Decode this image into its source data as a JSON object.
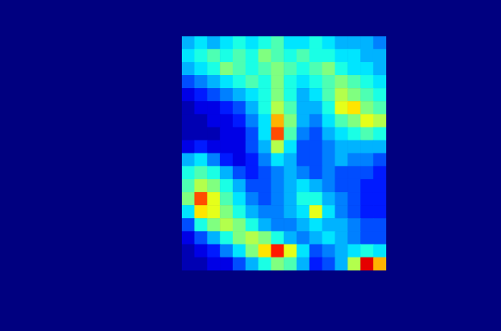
{
  "chart_data": {
    "type": "heatmap",
    "tick_labels": false,
    "xlim": [
      0,
      16
    ],
    "ylim": [
      0,
      18
    ],
    "color_range": [
      0,
      1
    ],
    "cells": [
      [
        0.3,
        0.35,
        0.3,
        0.35,
        0.4,
        0.35,
        0.4,
        0.45,
        0.35,
        0.35,
        0.4,
        0.35,
        0.3,
        0.3,
        0.3,
        0.25
      ],
      [
        0.35,
        0.4,
        0.45,
        0.4,
        0.45,
        0.4,
        0.5,
        0.45,
        0.4,
        0.45,
        0.4,
        0.4,
        0.35,
        0.35,
        0.3,
        0.3
      ],
      [
        0.3,
        0.35,
        0.4,
        0.5,
        0.45,
        0.4,
        0.45,
        0.5,
        0.45,
        0.4,
        0.45,
        0.5,
        0.4,
        0.35,
        0.35,
        0.3
      ],
      [
        0.2,
        0.25,
        0.3,
        0.35,
        0.4,
        0.45,
        0.4,
        0.5,
        0.4,
        0.35,
        0.4,
        0.45,
        0.5,
        0.45,
        0.4,
        0.35
      ],
      [
        0.1,
        0.15,
        0.2,
        0.25,
        0.3,
        0.35,
        0.4,
        0.5,
        0.4,
        0.3,
        0.35,
        0.45,
        0.55,
        0.5,
        0.45,
        0.4
      ],
      [
        0.05,
        0.1,
        0.1,
        0.15,
        0.2,
        0.3,
        0.4,
        0.55,
        0.45,
        0.3,
        0.3,
        0.4,
        0.6,
        0.65,
        0.5,
        0.45
      ],
      [
        0.05,
        0.05,
        0.1,
        0.1,
        0.15,
        0.25,
        0.35,
        0.7,
        0.5,
        0.3,
        0.25,
        0.35,
        0.45,
        0.5,
        0.6,
        0.55
      ],
      [
        0.05,
        0.05,
        0.05,
        0.1,
        0.1,
        0.2,
        0.35,
        0.8,
        0.45,
        0.25,
        0.2,
        0.3,
        0.35,
        0.4,
        0.45,
        0.4
      ],
      [
        0.1,
        0.15,
        0.1,
        0.1,
        0.1,
        0.2,
        0.3,
        0.55,
        0.35,
        0.2,
        0.2,
        0.25,
        0.3,
        0.3,
        0.3,
        0.3
      ],
      [
        0.3,
        0.35,
        0.25,
        0.15,
        0.1,
        0.15,
        0.25,
        0.35,
        0.3,
        0.2,
        0.2,
        0.25,
        0.3,
        0.25,
        0.25,
        0.2
      ],
      [
        0.4,
        0.45,
        0.4,
        0.3,
        0.2,
        0.15,
        0.2,
        0.25,
        0.3,
        0.25,
        0.2,
        0.25,
        0.2,
        0.2,
        0.2,
        0.15
      ],
      [
        0.45,
        0.55,
        0.5,
        0.4,
        0.3,
        0.2,
        0.2,
        0.25,
        0.3,
        0.35,
        0.3,
        0.25,
        0.2,
        0.2,
        0.15,
        0.15
      ],
      [
        0.5,
        0.8,
        0.6,
        0.45,
        0.35,
        0.25,
        0.2,
        0.25,
        0.3,
        0.4,
        0.4,
        0.3,
        0.25,
        0.2,
        0.15,
        0.15
      ],
      [
        0.35,
        0.65,
        0.6,
        0.5,
        0.4,
        0.3,
        0.25,
        0.25,
        0.3,
        0.35,
        0.6,
        0.35,
        0.25,
        0.2,
        0.15,
        0.15
      ],
      [
        0.2,
        0.4,
        0.5,
        0.55,
        0.5,
        0.4,
        0.3,
        0.25,
        0.25,
        0.3,
        0.35,
        0.3,
        0.3,
        0.25,
        0.2,
        0.2
      ],
      [
        0.1,
        0.2,
        0.3,
        0.4,
        0.5,
        0.55,
        0.5,
        0.4,
        0.3,
        0.25,
        0.3,
        0.35,
        0.3,
        0.25,
        0.2,
        0.2
      ],
      [
        0.05,
        0.1,
        0.15,
        0.25,
        0.35,
        0.5,
        0.65,
        0.85,
        0.6,
        0.35,
        0.2,
        0.25,
        0.3,
        0.35,
        0.4,
        0.35
      ],
      [
        0.05,
        0.05,
        0.1,
        0.1,
        0.2,
        0.3,
        0.4,
        0.5,
        0.45,
        0.3,
        0.15,
        0.2,
        0.3,
        0.55,
        0.9,
        0.7
      ]
    ]
  }
}
